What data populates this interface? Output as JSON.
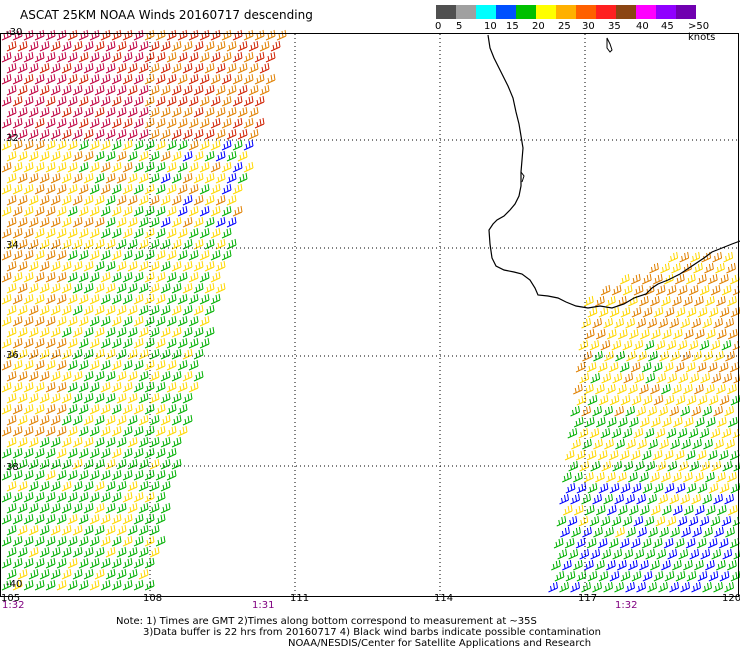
{
  "title": "ASCAT 25KM NOAA Winds 20160717 descending",
  "legend": {
    "labels": [
      "0",
      "5",
      "10",
      "15",
      "20",
      "25",
      "30",
      "35",
      "40",
      "45",
      ">50 knots"
    ],
    "colors": [
      "#505050",
      "#a0a0a0",
      "#00ffff",
      "#0050ff",
      "#00c000",
      "#ffff00",
      "#ffb000",
      "#ff6000",
      "#ff2020",
      "#8b4513",
      "#ff00ff",
      "#9000ff",
      "#7000b0"
    ]
  },
  "axes": {
    "lat_labels": [
      "-30",
      "32",
      "34",
      "36",
      "38",
      "-40"
    ],
    "lon_labels": [
      "105",
      "108",
      "111",
      "114",
      "117",
      "120"
    ]
  },
  "times": [
    "1:32",
    "1:31",
    "1:32"
  ],
  "notes": {
    "line1": "Note: 1) Times are GMT 2)Times along bottom correspond to measurement at ~35S",
    "line2": "3)Data buffer is 22 hrs from 20160717 4) Black wind barbs indicate possible contamination",
    "line3": "NOAA/NESDIS/Center for Satellite Applications and Research"
  },
  "barb_palette": {
    "blue": "#0000ff",
    "green": "#00b000",
    "yellow": "#ffd800",
    "orange": "#e08000",
    "red": "#d02000",
    "crimson": "#c00040"
  }
}
